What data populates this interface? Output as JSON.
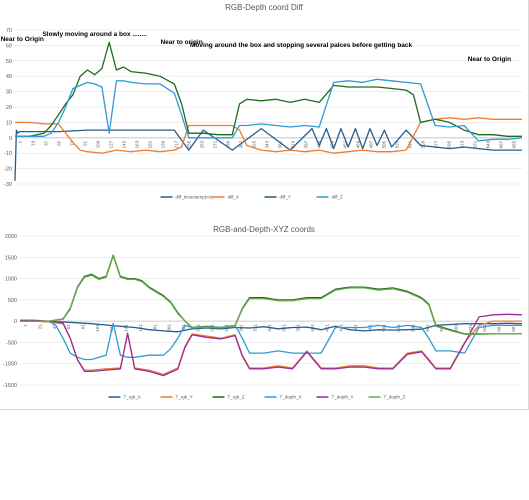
{
  "chart_data": [
    {
      "type": "line",
      "title": "RGB-Depth coord Diff",
      "ylim": [
        -30,
        70
      ],
      "yticks": [
        -30,
        -20,
        -10,
        0,
        10,
        20,
        30,
        40,
        50,
        60,
        70
      ],
      "x_labels": [
        "1",
        "19",
        "37",
        "55",
        "73",
        "91",
        "109",
        "127",
        "145",
        "163",
        "181",
        "199",
        "217",
        "235",
        "253",
        "271",
        "289",
        "307",
        "325",
        "343",
        "361",
        "379",
        "397",
        "415",
        "433",
        "451",
        "469",
        "487",
        "505",
        "523",
        "541",
        "559",
        "577",
        "595",
        "613",
        "631",
        "649",
        "667",
        "685"
      ],
      "annotations": [
        {
          "text": "Near to Origin",
          "x": 10,
          "y": 63
        },
        {
          "text": "Slowly moving around a box ........",
          "x": 110,
          "y": 66
        },
        {
          "text": "Near to origin",
          "x": 230,
          "y": 61
        },
        {
          "text": "Moving around the box and stopping several palces before getting back",
          "x": 395,
          "y": 59
        },
        {
          "text": "Near to Origin",
          "x": 655,
          "y": 50
        }
      ],
      "series": [
        {
          "name": "diff_timestamp(ms)",
          "color": "#255e91",
          "x": [
            0,
            2,
            4,
            6,
            20,
            60,
            100,
            140,
            180,
            220,
            240,
            260,
            300,
            340,
            380,
            410,
            420,
            430,
            440,
            450,
            460,
            470,
            480,
            490,
            500,
            510,
            520,
            540,
            560,
            580,
            600,
            620,
            640,
            660,
            680,
            700
          ],
          "values": [
            -28,
            5,
            3,
            4,
            4,
            4,
            5,
            5,
            5,
            5,
            -8,
            5,
            -8,
            6,
            -8,
            6,
            -5,
            6,
            -7,
            6,
            -6,
            6,
            -7,
            6,
            -5,
            5,
            -6,
            5,
            -5,
            -6,
            -7,
            -6,
            -7,
            -8,
            -8,
            -8
          ]
        },
        {
          "name": "diff_X",
          "color": "#ed7d31",
          "x": [
            0,
            20,
            40,
            60,
            80,
            90,
            100,
            120,
            140,
            160,
            180,
            200,
            220,
            230,
            240,
            260,
            280,
            300,
            310,
            320,
            340,
            360,
            380,
            400,
            420,
            440,
            460,
            480,
            500,
            520,
            540,
            560,
            580,
            600,
            620,
            640,
            660,
            680,
            700
          ],
          "values": [
            10,
            10,
            9,
            9,
            -3,
            -8,
            -9,
            -10,
            -8,
            -9,
            -8,
            -9,
            -8,
            -6,
            8,
            8,
            8,
            8,
            5,
            -5,
            -8,
            -9,
            -8,
            -9,
            -8,
            -10,
            -9,
            -8,
            -9,
            -9,
            -8,
            10,
            12,
            13,
            12,
            13,
            12,
            12,
            12
          ]
        },
        {
          "name": "diff_Y",
          "color": "#1e6b1e",
          "x": [
            0,
            20,
            40,
            50,
            60,
            70,
            80,
            90,
            100,
            110,
            120,
            130,
            140,
            150,
            160,
            180,
            200,
            220,
            230,
            240,
            260,
            280,
            300,
            310,
            320,
            340,
            360,
            380,
            400,
            420,
            440,
            460,
            480,
            500,
            520,
            540,
            550,
            560,
            580,
            600,
            620,
            640,
            660,
            680,
            700
          ],
          "values": [
            1,
            1,
            3,
            8,
            15,
            22,
            28,
            40,
            44,
            41,
            45,
            62,
            44,
            46,
            43,
            42,
            40,
            35,
            22,
            3,
            3,
            2,
            2,
            22,
            25,
            24,
            25,
            23,
            25,
            23,
            34,
            33,
            33,
            33,
            32,
            31,
            28,
            10,
            12,
            10,
            5,
            2,
            2,
            1,
            1
          ]
        },
        {
          "name": "diff_Z",
          "color": "#2e9bd6",
          "x": [
            0,
            20,
            40,
            50,
            60,
            70,
            80,
            90,
            100,
            110,
            120,
            130,
            140,
            150,
            160,
            180,
            200,
            220,
            230,
            240,
            260,
            280,
            300,
            310,
            320,
            340,
            360,
            380,
            400,
            420,
            440,
            460,
            480,
            500,
            520,
            540,
            560,
            580,
            600,
            620,
            640,
            660,
            680,
            700
          ],
          "values": [
            1,
            1,
            1,
            3,
            10,
            20,
            32,
            34,
            36,
            35,
            33,
            3,
            37,
            37,
            36,
            35,
            35,
            29,
            15,
            0,
            0,
            0,
            0,
            8,
            8,
            9,
            8,
            7,
            8,
            7,
            36,
            37,
            36,
            38,
            37,
            36,
            35,
            8,
            7,
            8,
            -2,
            -1,
            -1,
            0
          ]
        }
      ]
    },
    {
      "type": "line",
      "title": "RGB-and-Depth-XYZ coords",
      "ylim": [
        -1500,
        2000
      ],
      "yticks": [
        -1500,
        -1000,
        -500,
        0,
        500,
        1000,
        1500,
        2000
      ],
      "x_labels": [
        "1",
        "21",
        "41",
        "61",
        "81",
        "101",
        "121",
        "141",
        "161",
        "181",
        "201",
        "221",
        "241",
        "261",
        "281",
        "301",
        "321",
        "341",
        "361",
        "381",
        "401",
        "421",
        "441",
        "461",
        "481",
        "501",
        "521",
        "541",
        "561",
        "581",
        "601",
        "621",
        "641",
        "661",
        "681"
      ],
      "series": [
        {
          "name": "T_rgb_X",
          "color": "#255e91",
          "x": [
            0,
            20,
            40,
            60,
            80,
            100,
            120,
            140,
            160,
            180,
            200,
            220,
            240,
            260,
            280,
            300,
            320,
            340,
            360,
            380,
            400,
            420,
            440,
            460,
            480,
            500,
            520,
            540,
            560,
            580,
            600,
            620,
            640,
            660,
            680,
            700
          ],
          "values": [
            0,
            0,
            -10,
            -20,
            -40,
            -60,
            -90,
            -120,
            -150,
            -200,
            -230,
            -250,
            -180,
            -160,
            -180,
            -150,
            -160,
            -130,
            -180,
            -150,
            -140,
            -200,
            -120,
            -200,
            -230,
            -200,
            -210,
            -200,
            -190,
            -100,
            -80,
            -60,
            -60,
            -60,
            -50,
            -60
          ]
        },
        {
          "name": "T_rgb_Y",
          "color": "#ed7d31",
          "x": [
            0,
            20,
            40,
            60,
            70,
            80,
            90,
            100,
            120,
            140,
            150,
            160,
            180,
            200,
            220,
            230,
            240,
            260,
            280,
            300,
            310,
            320,
            340,
            360,
            380,
            400,
            420,
            440,
            460,
            480,
            500,
            520,
            540,
            560,
            580,
            600,
            620,
            640,
            660,
            680,
            700
          ],
          "values": [
            0,
            0,
            -20,
            -60,
            -400,
            -900,
            -1150,
            -1150,
            -1120,
            -1100,
            -300,
            -1100,
            -1150,
            -1250,
            -1100,
            -600,
            -300,
            -350,
            -400,
            -320,
            -800,
            -1100,
            -1100,
            -1050,
            -1100,
            -700,
            -1100,
            -1100,
            -1050,
            -1050,
            -1100,
            -1100,
            -750,
            -700,
            -1100,
            -1100,
            -500,
            -100,
            0,
            0,
            0
          ]
        },
        {
          "name": "T_rgb_Z",
          "color": "#1e6b1e",
          "x": [
            0,
            20,
            40,
            60,
            70,
            80,
            90,
            100,
            110,
            120,
            130,
            140,
            150,
            160,
            170,
            180,
            200,
            210,
            220,
            230,
            240,
            260,
            280,
            300,
            310,
            320,
            340,
            360,
            380,
            400,
            420,
            440,
            460,
            480,
            500,
            520,
            540,
            560,
            570,
            580,
            600,
            620,
            640,
            660,
            680,
            700
          ],
          "values": [
            0,
            0,
            0,
            50,
            300,
            800,
            1050,
            1100,
            1000,
            1050,
            1550,
            1050,
            1000,
            1000,
            950,
            800,
            600,
            450,
            200,
            0,
            -150,
            -120,
            -150,
            -100,
            300,
            550,
            550,
            500,
            500,
            550,
            550,
            750,
            800,
            800,
            750,
            780,
            700,
            550,
            400,
            -100,
            -200,
            -300,
            -300,
            -300,
            -300,
            -300
          ]
        },
        {
          "name": "T_depth_X",
          "color": "#2e9bd6",
          "x": [
            0,
            20,
            40,
            50,
            60,
            70,
            80,
            90,
            100,
            110,
            120,
            130,
            140,
            150,
            160,
            180,
            200,
            210,
            220,
            230,
            240,
            260,
            280,
            300,
            310,
            320,
            340,
            360,
            380,
            400,
            420,
            440,
            460,
            480,
            500,
            520,
            540,
            560,
            570,
            580,
            600,
            620,
            640,
            660,
            680,
            700
          ],
          "values": [
            0,
            0,
            0,
            -100,
            -400,
            -750,
            -850,
            -900,
            -900,
            -850,
            -800,
            -50,
            -800,
            -850,
            -850,
            -800,
            -800,
            -650,
            -400,
            -100,
            -150,
            -150,
            -150,
            -100,
            -400,
            -750,
            -750,
            -700,
            -750,
            -750,
            -750,
            -150,
            -150,
            -150,
            -100,
            -150,
            -100,
            -150,
            -400,
            -700,
            -700,
            -750,
            -150,
            -100,
            -100,
            -100
          ]
        },
        {
          "name": "T_depth_Y",
          "color": "#9b2d9b",
          "x": [
            0,
            20,
            40,
            60,
            70,
            80,
            90,
            100,
            120,
            140,
            150,
            160,
            180,
            200,
            220,
            230,
            240,
            260,
            280,
            300,
            310,
            320,
            340,
            360,
            380,
            400,
            420,
            440,
            460,
            480,
            500,
            520,
            540,
            560,
            580,
            600,
            620,
            640,
            660,
            680,
            700
          ],
          "values": [
            20,
            20,
            0,
            -40,
            -400,
            -900,
            -1180,
            -1180,
            -1150,
            -1120,
            -280,
            -1120,
            -1180,
            -1280,
            -1130,
            -620,
            -320,
            -380,
            -420,
            -340,
            -820,
            -1120,
            -1120,
            -1080,
            -1120,
            -720,
            -1120,
            -1120,
            -1080,
            -1080,
            -1120,
            -1120,
            -780,
            -720,
            -1120,
            -1120,
            -520,
            100,
            150,
            160,
            150
          ]
        },
        {
          "name": "T_depth_Z",
          "color": "#6aa84f",
          "x": [
            0,
            20,
            40,
            60,
            70,
            80,
            90,
            100,
            110,
            120,
            130,
            140,
            150,
            160,
            170,
            180,
            200,
            210,
            220,
            230,
            240,
            260,
            280,
            300,
            310,
            320,
            340,
            360,
            380,
            400,
            420,
            440,
            460,
            480,
            500,
            520,
            540,
            560,
            570,
            580,
            600,
            620,
            640,
            660,
            680,
            700
          ],
          "values": [
            0,
            0,
            0,
            40,
            280,
            780,
            1030,
            1080,
            980,
            1030,
            1530,
            1030,
            980,
            980,
            930,
            780,
            580,
            430,
            180,
            0,
            -160,
            -130,
            -160,
            -110,
            280,
            530,
            530,
            480,
            480,
            530,
            530,
            730,
            780,
            780,
            730,
            760,
            680,
            530,
            380,
            -120,
            -220,
            -310,
            -310,
            -300,
            -300,
            -300
          ]
        }
      ]
    }
  ]
}
